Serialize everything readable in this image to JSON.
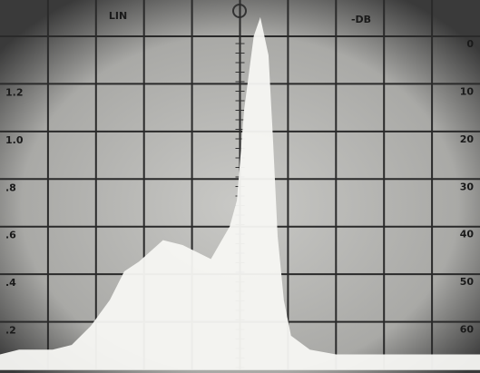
{
  "chart_data": {
    "type": "area",
    "top_left_label": "LIN",
    "top_right_label": "-DB",
    "x": [
      0,
      0.4,
      1.1,
      1.5,
      1.9,
      2.3,
      2.6,
      2.9,
      3.4,
      3.8,
      4.4,
      4.8,
      4.95,
      5.1,
      5.3,
      5.42,
      5.58,
      5.67,
      5.77,
      5.9,
      6.05,
      6.45,
      7,
      8,
      9,
      10
    ],
    "values": [
      0.06,
      0.08,
      0.08,
      0.1,
      0.18,
      0.29,
      0.41,
      0.45,
      0.54,
      0.52,
      0.46,
      0.6,
      0.71,
      1.09,
      1.4,
      1.47,
      1.32,
      0.98,
      0.56,
      0.29,
      0.14,
      0.08,
      0.06,
      0.06,
      0.06,
      0.06
    ],
    "color": "#f7f7f4",
    "xlim": [
      0,
      10
    ],
    "xticks": [
      1,
      2,
      3,
      4,
      5,
      6,
      7,
      8,
      9
    ],
    "ylim": [
      0,
      1.4
    ],
    "yticks": [
      {
        "value": 0.2,
        "label": ".2"
      },
      {
        "value": 0.4,
        "label": ".4"
      },
      {
        "value": 0.6,
        "label": ".6"
      },
      {
        "value": 0.8,
        "label": ".8"
      },
      {
        "value": 1.0,
        "label": "1.0"
      },
      1.2
    ],
    "y2lim": [
      70,
      0
    ],
    "y2ticks": [
      0,
      10,
      20,
      30,
      40,
      50,
      60
    ],
    "grid": true
  }
}
